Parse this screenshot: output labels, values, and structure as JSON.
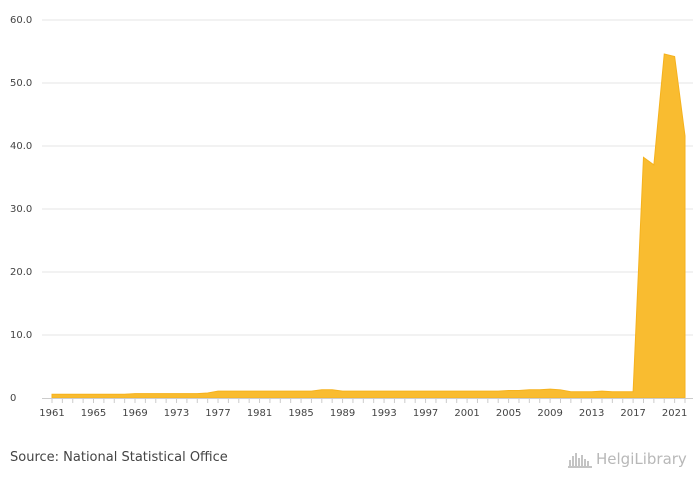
{
  "chart_data": {
    "type": "area",
    "x": [
      1961,
      1962,
      1963,
      1964,
      1965,
      1966,
      1967,
      1968,
      1969,
      1970,
      1971,
      1972,
      1973,
      1974,
      1975,
      1976,
      1977,
      1978,
      1979,
      1980,
      1981,
      1982,
      1983,
      1984,
      1985,
      1986,
      1987,
      1988,
      1989,
      1990,
      1991,
      1992,
      1993,
      1994,
      1995,
      1996,
      1997,
      1998,
      1999,
      2000,
      2001,
      2002,
      2003,
      2004,
      2005,
      2006,
      2007,
      2008,
      2009,
      2010,
      2011,
      2012,
      2013,
      2014,
      2015,
      2016,
      2017,
      2018,
      2019,
      2020,
      2021,
      2022
    ],
    "series": [
      {
        "values": [
          0.6,
          0.6,
          0.6,
          0.6,
          0.6,
          0.6,
          0.6,
          0.6,
          0.7,
          0.7,
          0.7,
          0.7,
          0.7,
          0.7,
          0.7,
          0.8,
          1.1,
          1.1,
          1.1,
          1.1,
          1.1,
          1.1,
          1.1,
          1.1,
          1.1,
          1.1,
          1.3,
          1.3,
          1.1,
          1.1,
          1.1,
          1.1,
          1.1,
          1.1,
          1.1,
          1.1,
          1.1,
          1.1,
          1.1,
          1.1,
          1.1,
          1.1,
          1.1,
          1.1,
          1.2,
          1.2,
          1.3,
          1.3,
          1.4,
          1.3,
          1.0,
          1.0,
          1.0,
          1.1,
          1.0,
          1.0,
          1.0,
          38.2,
          37.0,
          54.6,
          54.2,
          41.6
        ],
        "color": "#f9bc30"
      }
    ],
    "ylim": [
      0,
      60
    ],
    "yticks": [
      "0",
      "10.0",
      "20.0",
      "30.0",
      "40.0",
      "50.0",
      "60.0"
    ],
    "xticks": [
      "1961",
      "1965",
      "1969",
      "1973",
      "1977",
      "1981",
      "1985",
      "1989",
      "1993",
      "1997",
      "2001",
      "2005",
      "2009",
      "2013",
      "2017",
      "2021"
    ],
    "grid": true,
    "legend": "none"
  },
  "footer": {
    "source": "Source: National Statistical Office",
    "brand": "HelgiLibrary"
  },
  "colors": {
    "area": "#f9bc30",
    "grid": "#e6e6e6",
    "axis": "#cccccc",
    "text": "#444444"
  },
  "icons": {
    "brand": "skyline-icon"
  }
}
